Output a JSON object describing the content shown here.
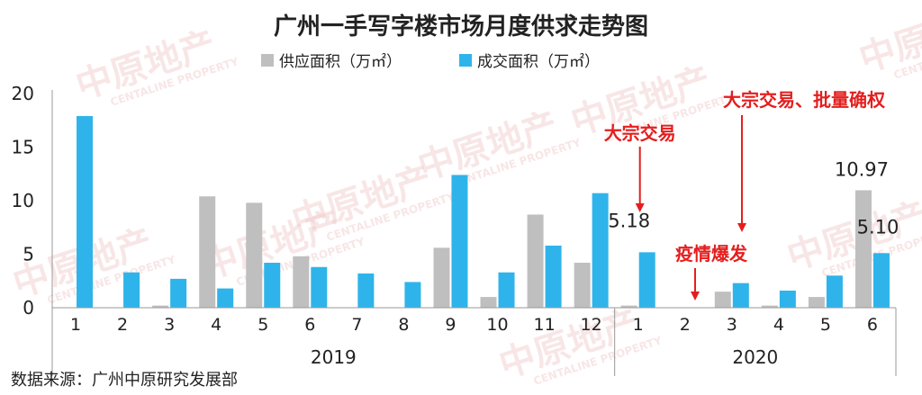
{
  "chart_data": {
    "type": "bar",
    "title": "广州一手写字楼市场月度供求走势图",
    "categories": [
      "1",
      "2",
      "3",
      "4",
      "5",
      "6",
      "7",
      "8",
      "9",
      "10",
      "11",
      "12",
      "1",
      "2",
      "3",
      "4",
      "5",
      "6"
    ],
    "year_groups": [
      {
        "label": "2019",
        "start": 0,
        "end": 11
      },
      {
        "label": "2020",
        "start": 12,
        "end": 17
      }
    ],
    "series": [
      {
        "name": "供应面积（万㎡）",
        "color": "#bfbfbf",
        "values": [
          0,
          0,
          0.2,
          10.4,
          9.8,
          4.8,
          0,
          0,
          5.6,
          1.0,
          8.7,
          4.2,
          0.2,
          0,
          1.5,
          0.2,
          1.0,
          10.97
        ]
      },
      {
        "name": "成交面积（万㎡）",
        "color": "#2eb4ea",
        "values": [
          17.9,
          3.3,
          2.7,
          1.8,
          4.2,
          3.8,
          3.2,
          2.4,
          12.4,
          3.3,
          5.8,
          10.7,
          5.18,
          0,
          2.3,
          1.6,
          3.0,
          5.1
        ]
      }
    ],
    "ylim": [
      0,
      20
    ],
    "yticks": [
      0,
      5,
      10,
      15,
      20
    ],
    "ytick_labels": [
      "0",
      "5",
      "10",
      "15",
      "20"
    ],
    "data_labels": [
      {
        "text": "5.18",
        "series": 1,
        "index": 12
      },
      {
        "text": "10.97",
        "series": 0,
        "index": 17
      },
      {
        "text": "5.10",
        "series": 1,
        "index": 17
      }
    ],
    "annotations": [
      {
        "text": "大宗交易",
        "index": 12
      },
      {
        "text": "疫情爆发",
        "index": 13
      },
      {
        "text": "大宗交易、批量确权",
        "index": 14
      }
    ],
    "legend_position": "top",
    "grid": false
  },
  "source": "数据来源：广州中原研究发展部",
  "watermark": {
    "text": "中原地产",
    "sub": "CENTALINE PROPERTY",
    "color": "#f0c8c8"
  },
  "colors": {
    "annotation": "#e41e1e",
    "axis": "#999999"
  }
}
